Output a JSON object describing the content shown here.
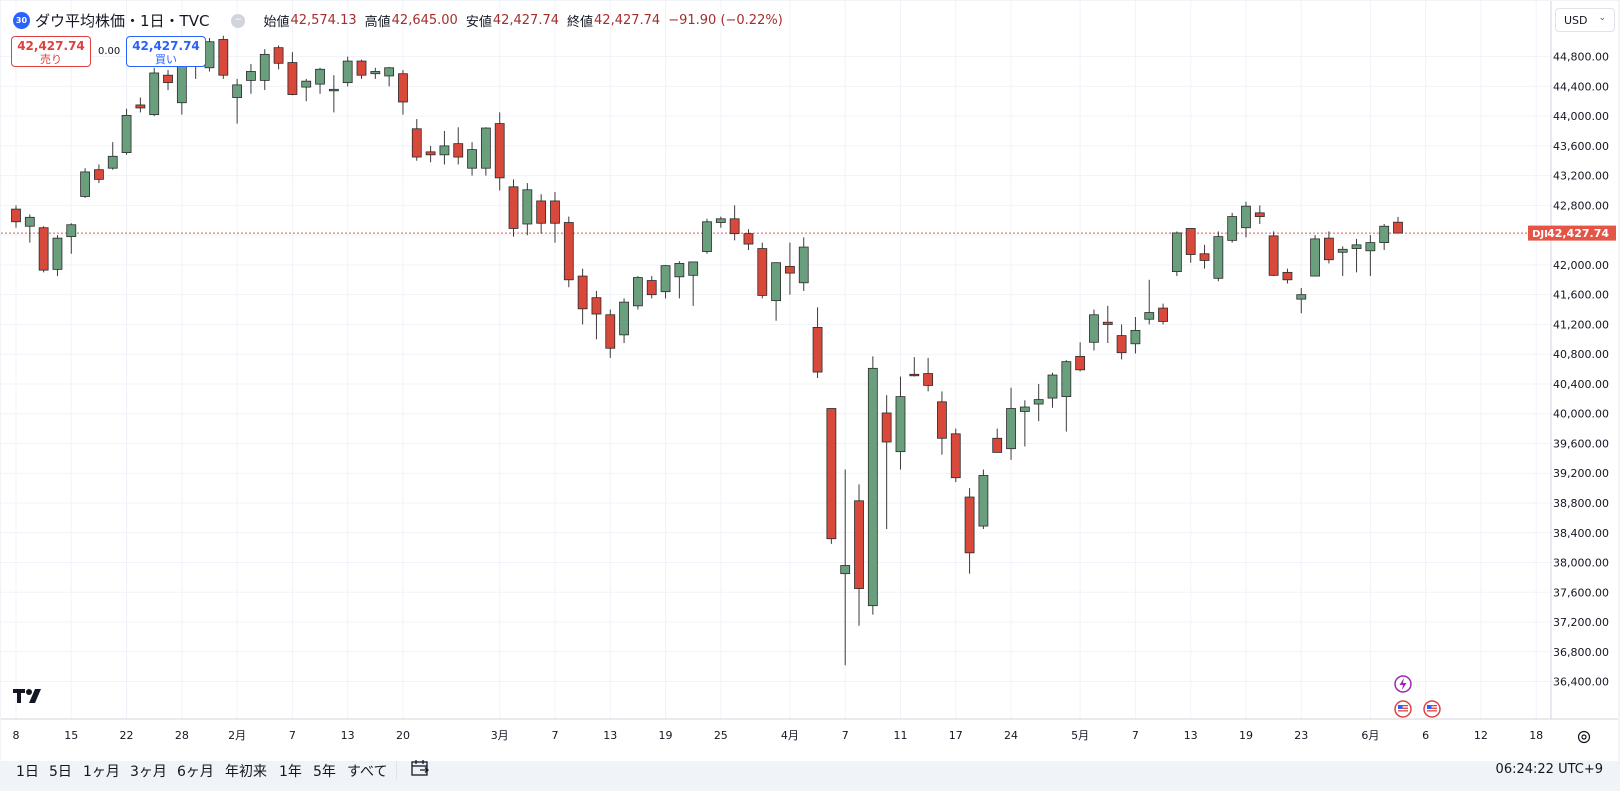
{
  "header": {
    "symbol_badge": "30",
    "title": "ダウ平均株価・1日・TVC",
    "ohlc": [
      {
        "label": "始値",
        "value": "42,574.13"
      },
      {
        "label": "高値",
        "value": "42,645.00"
      },
      {
        "label": "安値",
        "value": "42,427.74"
      },
      {
        "label": "終値",
        "value": "42,427.74"
      }
    ],
    "change": "−91.90 (−0.22%)"
  },
  "trade": {
    "sell_price": "42,427.74",
    "sell_label": "売り",
    "spread": "0.00",
    "buy_price": "42,427.74",
    "buy_label": "買い"
  },
  "currency": "USD",
  "price_label": {
    "symbol": "DJI",
    "value": "42,427.74"
  },
  "ranges": [
    "1日",
    "5日",
    "1ヶ月",
    "3ヶ月",
    "6ヶ月",
    "年初来",
    "1年",
    "5年",
    "すべて"
  ],
  "clock": "06:24:22 UTC+9",
  "colors": {
    "up": "#6a9f7e",
    "down": "#d9493b",
    "price_line": "#e45545",
    "grid": "#f0f3fa"
  },
  "chart_data": {
    "type": "candlestick",
    "y_ticks": [
      "44,800.00",
      "44,400.00",
      "44,000.00",
      "43,600.00",
      "43,200.00",
      "42,800.00",
      "42,400.00",
      "42,000.00",
      "41,600.00",
      "41,200.00",
      "40,800.00",
      "40,400.00",
      "40,000.00",
      "39,600.00",
      "39,200.00",
      "38,800.00",
      "38,400.00",
      "38,000.00",
      "37,600.00",
      "37,200.00",
      "36,800.00",
      "36,400.00"
    ],
    "y_tick_values": [
      44800,
      44400,
      44000,
      43600,
      43200,
      42800,
      42400,
      42000,
      41600,
      41200,
      40800,
      40400,
      40000,
      39600,
      39200,
      38800,
      38400,
      38000,
      37600,
      37200,
      36800,
      36400
    ],
    "ylim": [
      36200,
      45000
    ],
    "last_price": 42427.74,
    "x_ticks": [
      {
        "label": "8",
        "slot": 0
      },
      {
        "label": "15",
        "slot": 4
      },
      {
        "label": "22",
        "slot": 8
      },
      {
        "label": "28",
        "slot": 12
      },
      {
        "label": "2月",
        "slot": 16
      },
      {
        "label": "7",
        "slot": 20
      },
      {
        "label": "13",
        "slot": 24
      },
      {
        "label": "20",
        "slot": 28
      },
      {
        "label": "3月",
        "slot": 35
      },
      {
        "label": "7",
        "slot": 39
      },
      {
        "label": "13",
        "slot": 43
      },
      {
        "label": "19",
        "slot": 47
      },
      {
        "label": "25",
        "slot": 51
      },
      {
        "label": "4月",
        "slot": 56
      },
      {
        "label": "7",
        "slot": 60
      },
      {
        "label": "11",
        "slot": 64
      },
      {
        "label": "17",
        "slot": 68
      },
      {
        "label": "24",
        "slot": 72
      },
      {
        "label": "5月",
        "slot": 77
      },
      {
        "label": "7",
        "slot": 81
      },
      {
        "label": "13",
        "slot": 85
      },
      {
        "label": "19",
        "slot": 89
      },
      {
        "label": "23",
        "slot": 93
      },
      {
        "label": "6月",
        "slot": 98
      },
      {
        "label": "6",
        "slot": 102
      },
      {
        "label": "12",
        "slot": 106
      },
      {
        "label": "18",
        "slot": 110
      }
    ],
    "candles": [
      {
        "o": 42750,
        "h": 42800,
        "l": 42500,
        "c": 42580
      },
      {
        "o": 42520,
        "h": 42680,
        "l": 42300,
        "c": 42640
      },
      {
        "o": 42500,
        "h": 42520,
        "l": 41900,
        "c": 41930
      },
      {
        "o": 41940,
        "h": 42400,
        "l": 41850,
        "c": 42360
      },
      {
        "o": 42380,
        "h": 42560,
        "l": 42150,
        "c": 42540
      },
      {
        "o": 42920,
        "h": 43300,
        "l": 42900,
        "c": 43250
      },
      {
        "o": 43280,
        "h": 43350,
        "l": 43100,
        "c": 43150
      },
      {
        "o": 43300,
        "h": 43650,
        "l": 43280,
        "c": 43460
      },
      {
        "o": 43510,
        "h": 44100,
        "l": 43480,
        "c": 44010
      },
      {
        "o": 44150,
        "h": 44250,
        "l": 44050,
        "c": 44110
      },
      {
        "o": 44020,
        "h": 44650,
        "l": 44000,
        "c": 44580
      },
      {
        "o": 44550,
        "h": 44620,
        "l": 44350,
        "c": 44450
      },
      {
        "o": 44180,
        "h": 44850,
        "l": 44020,
        "c": 44820
      },
      {
        "o": 44700,
        "h": 44950,
        "l": 44500,
        "c": 44870
      },
      {
        "o": 44650,
        "h": 45050,
        "l": 44600,
        "c": 45000
      },
      {
        "o": 45030,
        "h": 45080,
        "l": 44500,
        "c": 44550
      },
      {
        "o": 44250,
        "h": 44500,
        "l": 43900,
        "c": 44420
      },
      {
        "o": 44480,
        "h": 44700,
        "l": 44300,
        "c": 44600
      },
      {
        "o": 44480,
        "h": 44900,
        "l": 44350,
        "c": 44830
      },
      {
        "o": 44920,
        "h": 44950,
        "l": 44630,
        "c": 44710
      },
      {
        "o": 44720,
        "h": 44860,
        "l": 44280,
        "c": 44290
      },
      {
        "o": 44390,
        "h": 44500,
        "l": 44200,
        "c": 44470
      },
      {
        "o": 44430,
        "h": 44650,
        "l": 44300,
        "c": 44630
      },
      {
        "o": 44350,
        "h": 44550,
        "l": 44050,
        "c": 44360
      },
      {
        "o": 44450,
        "h": 44800,
        "l": 44400,
        "c": 44740
      },
      {
        "o": 44740,
        "h": 44760,
        "l": 44500,
        "c": 44550
      },
      {
        "o": 44570,
        "h": 44650,
        "l": 44500,
        "c": 44600
      },
      {
        "o": 44540,
        "h": 44660,
        "l": 44400,
        "c": 44650
      },
      {
        "o": 44570,
        "h": 44620,
        "l": 44020,
        "c": 44190
      },
      {
        "o": 43830,
        "h": 43960,
        "l": 43400,
        "c": 43450
      },
      {
        "o": 43520,
        "h": 43600,
        "l": 43380,
        "c": 43480
      },
      {
        "o": 43480,
        "h": 43800,
        "l": 43350,
        "c": 43600
      },
      {
        "o": 43630,
        "h": 43850,
        "l": 43350,
        "c": 43450
      },
      {
        "o": 43300,
        "h": 43650,
        "l": 43200,
        "c": 43550
      },
      {
        "o": 43300,
        "h": 43850,
        "l": 43200,
        "c": 43840
      },
      {
        "o": 43900,
        "h": 44050,
        "l": 43000,
        "c": 43170
      },
      {
        "o": 43050,
        "h": 43150,
        "l": 42380,
        "c": 42490
      },
      {
        "o": 42550,
        "h": 43100,
        "l": 42400,
        "c": 43010
      },
      {
        "o": 42860,
        "h": 42950,
        "l": 42420,
        "c": 42560
      },
      {
        "o": 42860,
        "h": 42980,
        "l": 42300,
        "c": 42560
      },
      {
        "o": 42570,
        "h": 42650,
        "l": 41700,
        "c": 41800
      },
      {
        "o": 41850,
        "h": 41950,
        "l": 41200,
        "c": 41410
      },
      {
        "o": 41560,
        "h": 41650,
        "l": 41000,
        "c": 41340
      },
      {
        "o": 41330,
        "h": 41400,
        "l": 40750,
        "c": 40880
      },
      {
        "o": 41060,
        "h": 41550,
        "l": 40950,
        "c": 41500
      },
      {
        "o": 41450,
        "h": 41850,
        "l": 41400,
        "c": 41830
      },
      {
        "o": 41790,
        "h": 41850,
        "l": 41550,
        "c": 41600
      },
      {
        "o": 41640,
        "h": 42000,
        "l": 41550,
        "c": 41990
      },
      {
        "o": 41840,
        "h": 42050,
        "l": 41550,
        "c": 42020
      },
      {
        "o": 41860,
        "h": 42000,
        "l": 41450,
        "c": 42040
      },
      {
        "o": 42180,
        "h": 42620,
        "l": 42150,
        "c": 42580
      },
      {
        "o": 42570,
        "h": 42650,
        "l": 42500,
        "c": 42620
      },
      {
        "o": 42620,
        "h": 42800,
        "l": 42330,
        "c": 42420
      },
      {
        "o": 42420,
        "h": 42480,
        "l": 42200,
        "c": 42280
      },
      {
        "o": 42220,
        "h": 42300,
        "l": 41550,
        "c": 41590
      },
      {
        "o": 41520,
        "h": 42000,
        "l": 41250,
        "c": 42030
      },
      {
        "o": 41980,
        "h": 42300,
        "l": 41600,
        "c": 41890
      },
      {
        "o": 41760,
        "h": 42370,
        "l": 41650,
        "c": 42240
      },
      {
        "o": 41160,
        "h": 41430,
        "l": 40480,
        "c": 40560
      },
      {
        "o": 40070,
        "h": 40070,
        "l": 38250,
        "c": 38320
      },
      {
        "o": 37850,
        "h": 39250,
        "l": 36620,
        "c": 37960
      },
      {
        "o": 38830,
        "h": 39050,
        "l": 37150,
        "c": 37650
      },
      {
        "o": 37420,
        "h": 40770,
        "l": 37300,
        "c": 40610
      },
      {
        "o": 40010,
        "h": 40250,
        "l": 38450,
        "c": 39620
      },
      {
        "o": 39490,
        "h": 40500,
        "l": 39250,
        "c": 40230
      },
      {
        "o": 40530,
        "h": 40760,
        "l": 40500,
        "c": 40510
      },
      {
        "o": 40540,
        "h": 40750,
        "l": 40300,
        "c": 40380
      },
      {
        "o": 40160,
        "h": 40300,
        "l": 39450,
        "c": 39670
      },
      {
        "o": 39730,
        "h": 39800,
        "l": 39080,
        "c": 39140
      },
      {
        "o": 38880,
        "h": 39000,
        "l": 37850,
        "c": 38130
      },
      {
        "o": 38490,
        "h": 39250,
        "l": 38450,
        "c": 39170
      },
      {
        "o": 39670,
        "h": 39800,
        "l": 39560,
        "c": 39480
      },
      {
        "o": 39530,
        "h": 40350,
        "l": 39380,
        "c": 40070
      },
      {
        "o": 40030,
        "h": 40180,
        "l": 39560,
        "c": 40090
      },
      {
        "o": 40130,
        "h": 40400,
        "l": 39900,
        "c": 40190
      },
      {
        "o": 40210,
        "h": 40550,
        "l": 40080,
        "c": 40520
      },
      {
        "o": 40230,
        "h": 40720,
        "l": 39760,
        "c": 40700
      },
      {
        "o": 40770,
        "h": 40960,
        "l": 40570,
        "c": 40590
      },
      {
        "o": 40960,
        "h": 41400,
        "l": 40850,
        "c": 41330
      },
      {
        "o": 41230,
        "h": 41450,
        "l": 40950,
        "c": 41200
      },
      {
        "o": 41050,
        "h": 41200,
        "l": 40730,
        "c": 40820
      },
      {
        "o": 40940,
        "h": 41300,
        "l": 40810,
        "c": 41120
      },
      {
        "o": 41270,
        "h": 41800,
        "l": 41200,
        "c": 41360
      },
      {
        "o": 41420,
        "h": 41480,
        "l": 41200,
        "c": 41240
      },
      {
        "o": 41910,
        "h": 42450,
        "l": 41850,
        "c": 42430
      },
      {
        "o": 42490,
        "h": 42490,
        "l": 42030,
        "c": 42140
      },
      {
        "o": 42150,
        "h": 42270,
        "l": 41950,
        "c": 42060
      },
      {
        "o": 41820,
        "h": 42450,
        "l": 41780,
        "c": 42380
      },
      {
        "o": 42330,
        "h": 42700,
        "l": 42300,
        "c": 42650
      },
      {
        "o": 42500,
        "h": 42850,
        "l": 42370,
        "c": 42790
      },
      {
        "o": 42700,
        "h": 42800,
        "l": 42550,
        "c": 42650
      },
      {
        "o": 42390,
        "h": 42450,
        "l": 41850,
        "c": 41860
      },
      {
        "o": 41900,
        "h": 41950,
        "l": 41750,
        "c": 41800
      },
      {
        "o": 41540,
        "h": 41690,
        "l": 41350,
        "c": 41600
      },
      {
        "o": 41850,
        "h": 42400,
        "l": 41850,
        "c": 42350
      },
      {
        "o": 42360,
        "h": 42450,
        "l": 42020,
        "c": 42070
      },
      {
        "o": 42170,
        "h": 42250,
        "l": 41850,
        "c": 42210
      },
      {
        "o": 42220,
        "h": 42350,
        "l": 41900,
        "c": 42270
      },
      {
        "o": 42190,
        "h": 42400,
        "l": 41850,
        "c": 42300
      },
      {
        "o": 42300,
        "h": 42550,
        "l": 42200,
        "c": 42520
      },
      {
        "o": 42574.13,
        "h": 42645,
        "l": 42427.74,
        "c": 42427.74
      }
    ]
  }
}
